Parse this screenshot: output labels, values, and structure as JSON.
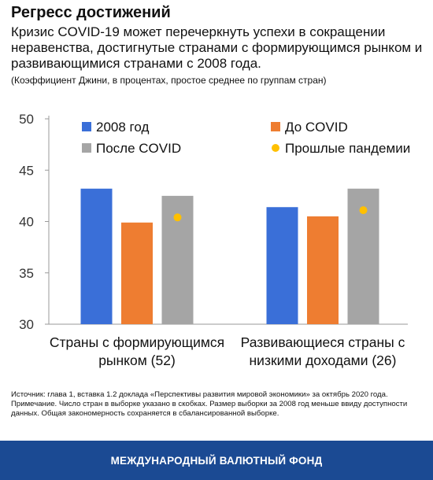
{
  "header": {
    "title": "Регресс достижений",
    "subtitle": "Кризис COVID-19 может перечеркнуть успехи в сокращении неравенства, достигнутые странами с формирующимся рынком и развивающимися странами с 2008 года.",
    "units_note": "(Коэффициент Джини, в процентах, простое среднее по группам стран)"
  },
  "footnotes": {
    "source": "Источник: глава 1, вставка 1.2 доклада «Перспективы развития мировой экономики» за октябрь 2020 года.",
    "note": "Примечание. Число стран в выборке указано в скобках. Размер выборки за 2008 год меньше ввиду доступности данных. Общая закономерность сохраняется в сбалансированной выборке."
  },
  "footer": {
    "org_name": "МЕЖДУНАРОДНЫЙ ВАЛЮТНЫЙ ФОНД"
  },
  "chart_data": {
    "type": "bar",
    "categories": [
      [
        "Страны с формирующимся",
        "рынком (52)"
      ],
      [
        "Развивающиеся страны с",
        "низкими доходами (26)"
      ]
    ],
    "series": [
      {
        "name": "2008 год",
        "type": "bar",
        "color": "#3a6fd8",
        "values": [
          43.2,
          41.4
        ]
      },
      {
        "name": "До COVID",
        "type": "bar",
        "color": "#ee7d31",
        "values": [
          39.9,
          40.5
        ]
      },
      {
        "name": "После COVID",
        "type": "bar",
        "color": "#a5a5a5",
        "values": [
          42.5,
          43.2
        ]
      },
      {
        "name": "Прошлые пандемии",
        "type": "point",
        "color": "#ffc000",
        "values": [
          40.4,
          41.1
        ]
      }
    ],
    "ylim": [
      30,
      50
    ],
    "yticks": [
      30,
      35,
      40,
      45,
      50
    ],
    "legend_position": "top",
    "grid": false
  }
}
